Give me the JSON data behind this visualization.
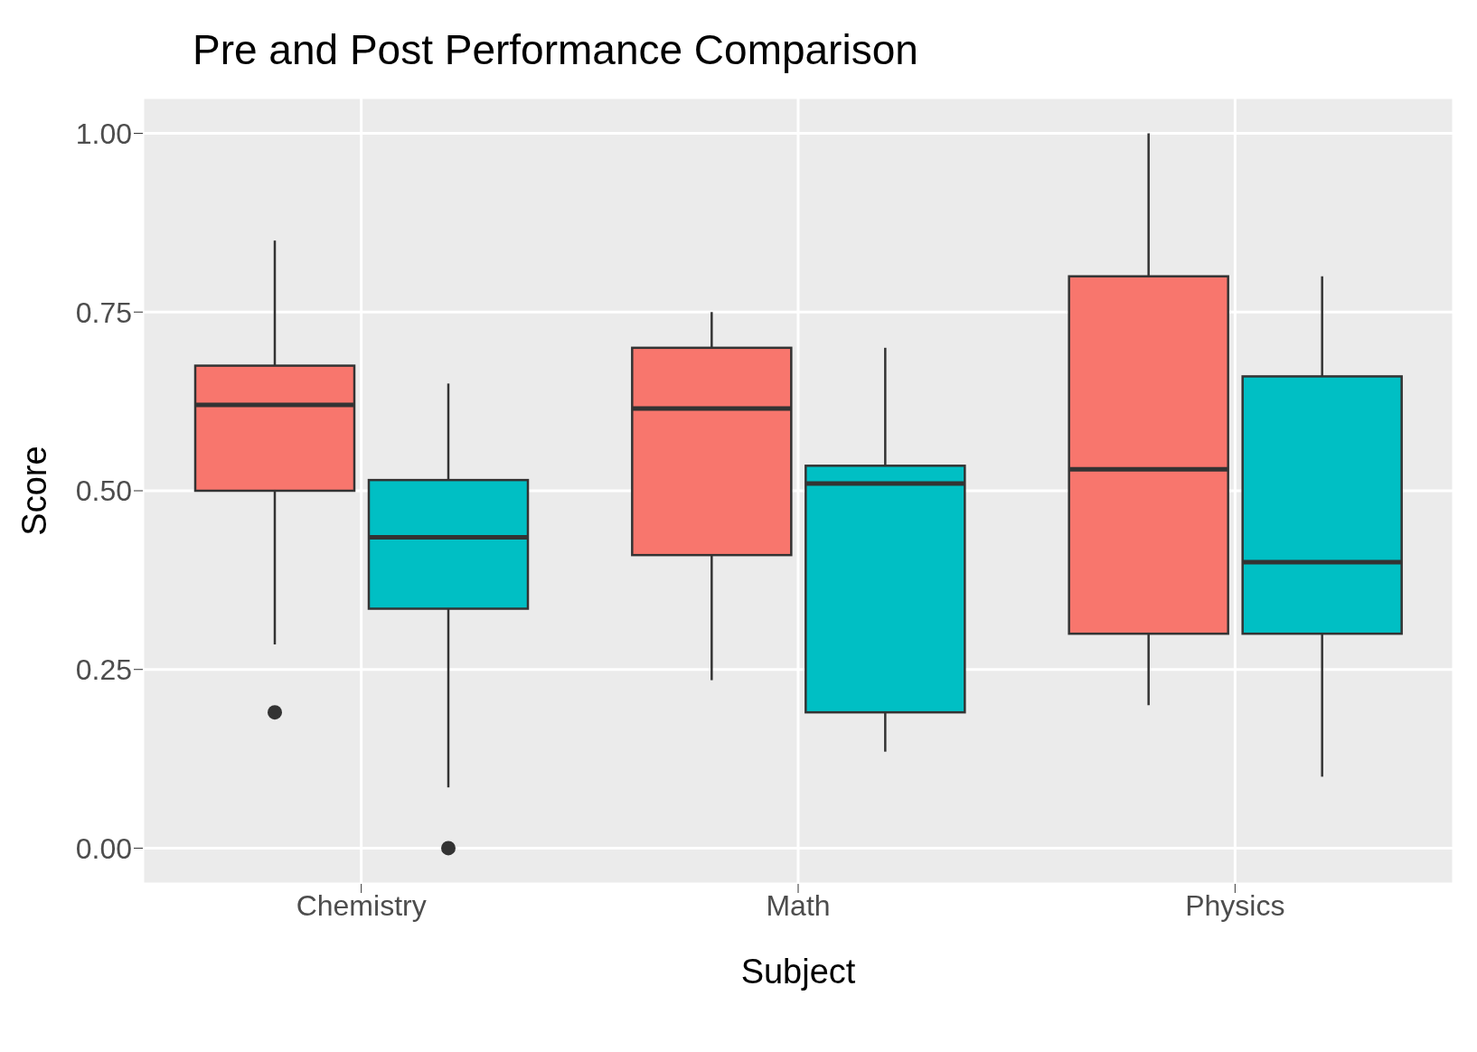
{
  "chart_data": {
    "type": "box",
    "title": "Pre and Post Performance Comparison",
    "xlabel": "Subject",
    "ylabel": "Score",
    "categories": [
      "Chemistry",
      "Math",
      "Physics"
    ],
    "series": [
      {
        "color": "#f8766d",
        "boxes": [
          {
            "low": 0.285,
            "q1": 0.5,
            "median": 0.62,
            "q3": 0.675,
            "high": 0.85,
            "outliers": [
              0.19
            ]
          },
          {
            "low": 0.235,
            "q1": 0.41,
            "median": 0.615,
            "q3": 0.7,
            "high": 0.75
          },
          {
            "low": 0.2,
            "q1": 0.3,
            "median": 0.53,
            "q3": 0.8,
            "high": 1.0
          }
        ]
      },
      {
        "color": "#00bfc4",
        "boxes": [
          {
            "low": 0.085,
            "q1": 0.335,
            "median": 0.435,
            "q3": 0.515,
            "high": 0.65,
            "outliers": [
              0.0
            ]
          },
          {
            "low": 0.135,
            "q1": 0.19,
            "median": 0.51,
            "q3": 0.535,
            "high": 0.7
          },
          {
            "low": 0.1,
            "q1": 0.3,
            "median": 0.4,
            "q3": 0.66,
            "high": 0.8
          }
        ]
      }
    ],
    "ylim": [
      -0.05,
      1.05
    ],
    "yticks": [
      {
        "value": 0,
        "label": "0.00"
      },
      {
        "value": 0.25,
        "label": "0.25"
      },
      {
        "value": 0.5,
        "label": "0.50"
      },
      {
        "value": 0.75,
        "label": "0.75"
      },
      {
        "value": 1,
        "label": "1.00"
      }
    ],
    "grid": true,
    "legend": false
  }
}
